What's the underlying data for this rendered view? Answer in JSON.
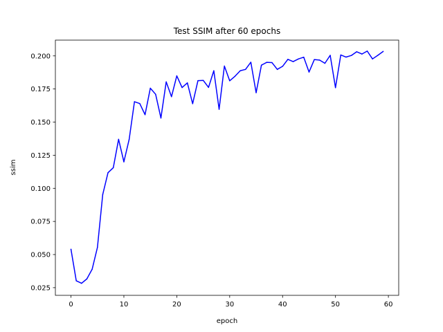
{
  "chart_data": {
    "type": "line",
    "title": "Test SSIM after 60 epochs",
    "xlabel": "epoch",
    "ylabel": "ssim",
    "xlim": [
      -2.95,
      61.95
    ],
    "ylim": [
      0.0192,
      0.2119
    ],
    "xticks": [
      0,
      10,
      20,
      30,
      40,
      50,
      60
    ],
    "xtick_labels": [
      "0",
      "10",
      "20",
      "30",
      "40",
      "50",
      "60"
    ],
    "yticks": [
      0.025,
      0.05,
      0.075,
      0.1,
      0.125,
      0.15,
      0.175,
      0.2
    ],
    "ytick_labels": [
      "0.025",
      "0.050",
      "0.075",
      "0.100",
      "0.125",
      "0.150",
      "0.175",
      "0.200"
    ],
    "grid": false,
    "legend": false,
    "series": [
      {
        "color": "#0000ff",
        "x": [
          0,
          1,
          2,
          3,
          4,
          5,
          6,
          7,
          8,
          9,
          10,
          11,
          12,
          13,
          14,
          15,
          16,
          17,
          18,
          19,
          20,
          21,
          22,
          23,
          24,
          25,
          26,
          27,
          28,
          29,
          30,
          31,
          32,
          33,
          34,
          35,
          36,
          37,
          38,
          39,
          40,
          41,
          42,
          43,
          44,
          45,
          46,
          47,
          48,
          49,
          50,
          51,
          52,
          53,
          54,
          55,
          56,
          57,
          58,
          59
        ],
        "y": [
          0.0539,
          0.0302,
          0.0283,
          0.0316,
          0.0389,
          0.0554,
          0.0953,
          0.1118,
          0.1156,
          0.137,
          0.12,
          0.137,
          0.1654,
          0.164,
          0.1556,
          0.1756,
          0.171,
          0.1531,
          0.1804,
          0.1692,
          0.1849,
          0.1761,
          0.1796,
          0.1639,
          0.1813,
          0.1815,
          0.1762,
          0.1888,
          0.1597,
          0.1923,
          0.1812,
          0.1846,
          0.1888,
          0.1898,
          0.1952,
          0.1722,
          0.193,
          0.1951,
          0.1949,
          0.1898,
          0.1921,
          0.1974,
          0.1957,
          0.1977,
          0.199,
          0.1878,
          0.1972,
          0.1968,
          0.1944,
          0.2004,
          0.176,
          0.2007,
          0.1991,
          0.2003,
          0.2031,
          0.2014,
          0.2036,
          0.1977,
          0.2004,
          0.2033
        ]
      }
    ]
  }
}
